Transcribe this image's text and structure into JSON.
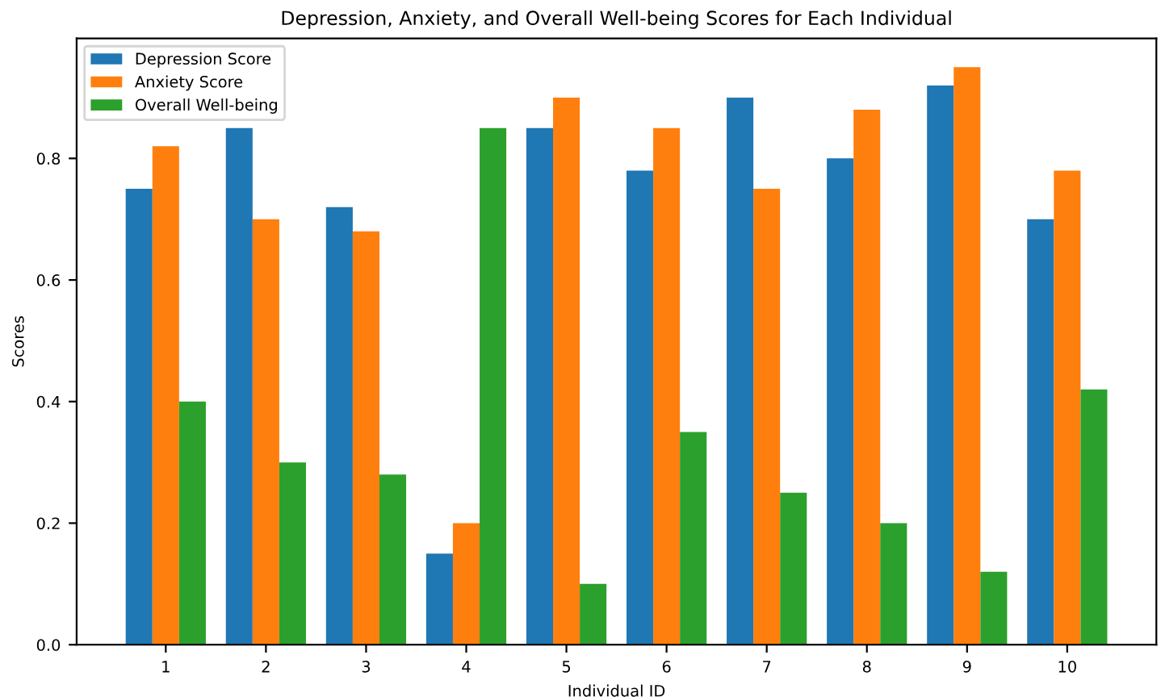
{
  "chart_data": {
    "type": "bar",
    "title": "Depression, Anxiety, and Overall Well-being Scores for Each Individual",
    "xlabel": "Individual ID",
    "ylabel": "Scores",
    "categories": [
      "1",
      "2",
      "3",
      "4",
      "5",
      "6",
      "7",
      "8",
      "9",
      "10"
    ],
    "series": [
      {
        "name": "Depression Score",
        "color": "#1f77b4",
        "values": [
          0.75,
          0.85,
          0.72,
          0.15,
          0.85,
          0.78,
          0.9,
          0.8,
          0.92,
          0.7
        ]
      },
      {
        "name": "Anxiety Score",
        "color": "#ff7f0e",
        "values": [
          0.82,
          0.7,
          0.68,
          0.2,
          0.9,
          0.85,
          0.75,
          0.88,
          0.95,
          0.78
        ]
      },
      {
        "name": "Overall Well-being",
        "color": "#2ca02c",
        "values": [
          0.4,
          0.3,
          0.28,
          0.85,
          0.1,
          0.35,
          0.25,
          0.2,
          0.12,
          0.42
        ]
      }
    ],
    "ylim": [
      0,
      0.9975
    ],
    "yticks": [
      {
        "value": 0,
        "label": "0.0"
      },
      {
        "value": 0.2,
        "label": "0.2"
      },
      {
        "value": 0.4,
        "label": "0.4"
      },
      {
        "value": 0.6,
        "label": "0.6"
      },
      {
        "value": 0.8,
        "label": "0.8"
      }
    ],
    "legend": "top left",
    "grid": false
  }
}
